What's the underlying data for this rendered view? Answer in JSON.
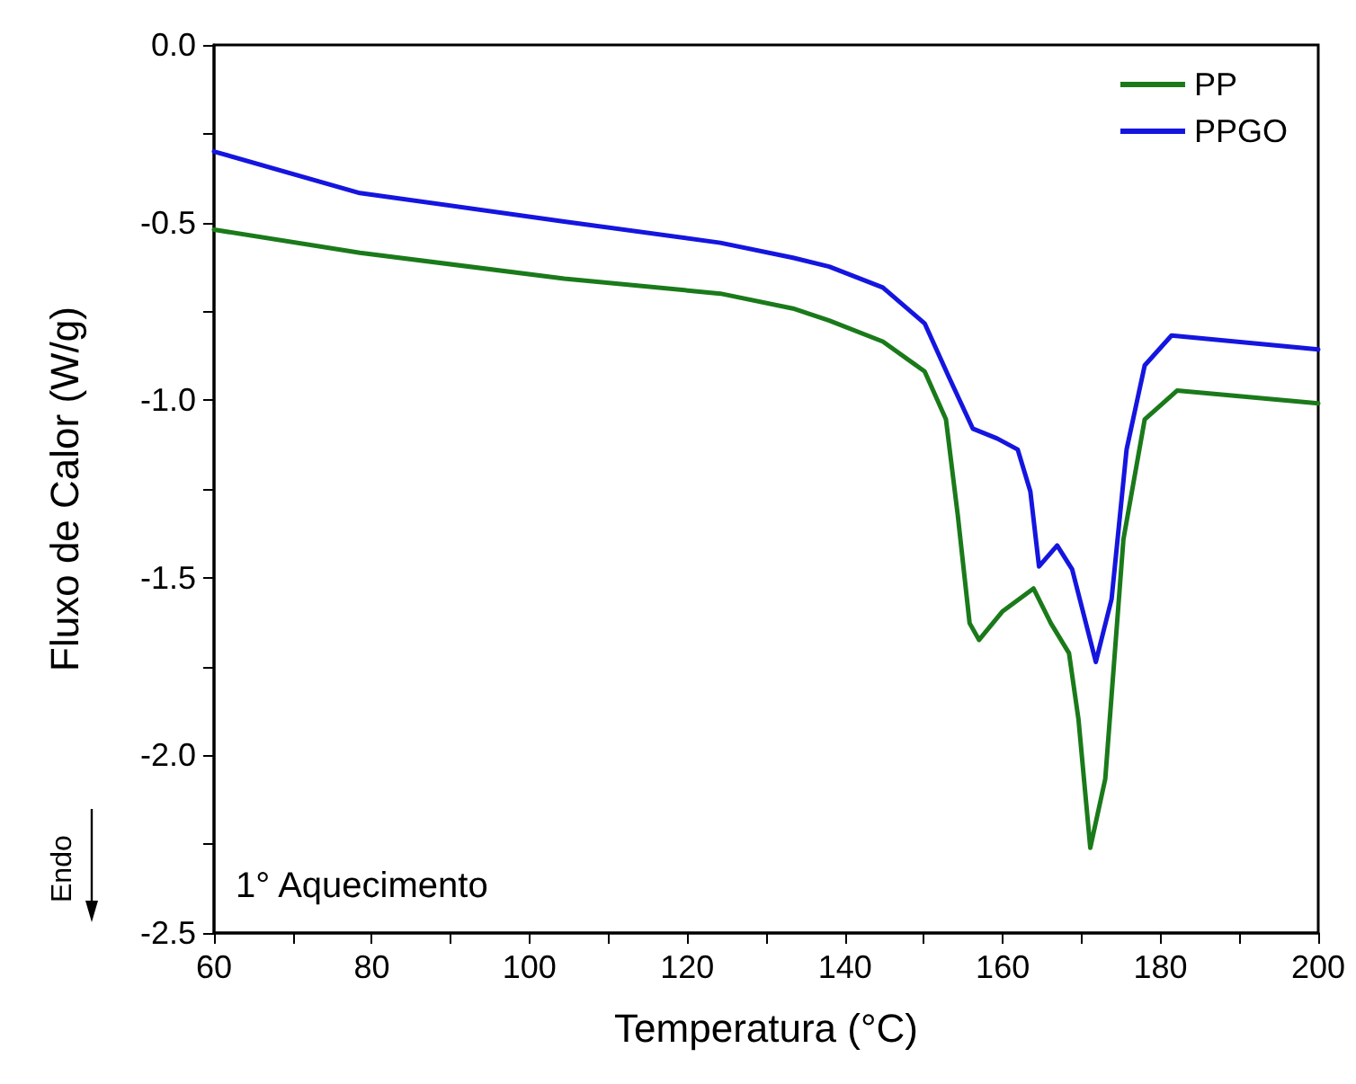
{
  "chart_data": {
    "type": "line",
    "xlabel": "Temperatura (°C)",
    "ylabel": "Fluxo de Calor (W/g)",
    "xlim": [
      60,
      200
    ],
    "ylim": [
      -2.5,
      0
    ],
    "xticks": [
      60,
      {
        "value": 70,
        "label": null
      },
      80,
      {
        "value": 90,
        "label": null
      },
      100,
      {
        "value": 110,
        "label": null
      },
      120,
      {
        "value": 130,
        "label": null
      },
      140,
      {
        "value": 150,
        "label": null
      },
      160,
      {
        "value": 170,
        "label": null
      },
      180,
      {
        "value": 190,
        "label": null
      },
      200
    ],
    "yticks": [
      {
        "value": -2.5,
        "label": "-2.5"
      },
      {
        "value": -2.25,
        "label": null
      },
      {
        "value": -2,
        "label": "-2.0"
      },
      {
        "value": -1.75,
        "label": null
      },
      {
        "value": -1.5,
        "label": "-1.5"
      },
      {
        "value": -1.25,
        "label": null
      },
      {
        "value": -1,
        "label": "-1.0"
      },
      {
        "value": -0.75,
        "label": null
      },
      {
        "value": -0.5,
        "label": "-0.5"
      },
      {
        "value": -0.25,
        "label": null
      },
      {
        "value": 0,
        "label": "0.0"
      }
    ],
    "grid": false,
    "legend": "top right",
    "line_style": "solid",
    "marker": "none",
    "annotations": [
      "1° Aquecimento",
      "Endo"
    ],
    "series": [
      {
        "name": "PP",
        "color": "#1a7a1a",
        "x": [
          60,
          78.5,
          104.4,
          124.2,
          133.4,
          138,
          144.8,
          150.1,
          152.8,
          154.3,
          155.8,
          157,
          160,
          163.9,
          166.1,
          168.4,
          169.6,
          171.1,
          173,
          175.3,
          178,
          182.1,
          200
        ],
        "values": [
          -0.52,
          -0.585,
          -0.658,
          -0.7,
          -0.742,
          -0.776,
          -0.835,
          -0.919,
          -1.054,
          -1.324,
          -1.628,
          -1.675,
          -1.594,
          -1.53,
          -1.628,
          -1.712,
          -1.898,
          -2.26,
          -2.066,
          -1.392,
          -1.054,
          -0.973,
          -1.009
        ]
      },
      {
        "name": "PPGO",
        "color": "#1515e0",
        "x": [
          60,
          78.5,
          104.4,
          124.2,
          133.4,
          138,
          144.8,
          150.1,
          153.2,
          156.2,
          159.3,
          161.9,
          163.5,
          164.6,
          166.9,
          168.8,
          171.8,
          173.8,
          175.7,
          178,
          181.4,
          200
        ],
        "values": [
          -0.3,
          -0.417,
          -0.497,
          -0.557,
          -0.599,
          -0.624,
          -0.683,
          -0.784,
          -0.936,
          -1.08,
          -1.108,
          -1.139,
          -1.257,
          -1.468,
          -1.409,
          -1.476,
          -1.737,
          -1.56,
          -1.139,
          -0.902,
          -0.818,
          -0.857
        ]
      }
    ]
  }
}
